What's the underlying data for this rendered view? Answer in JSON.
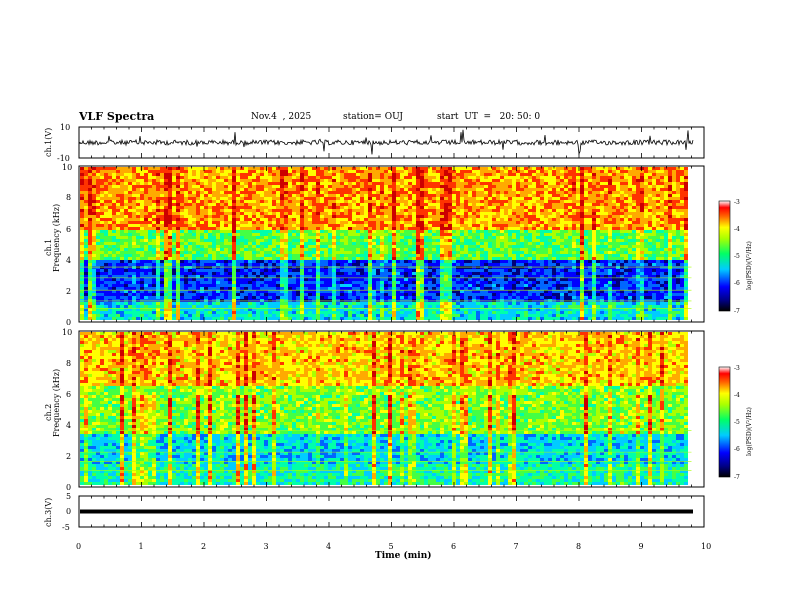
{
  "header": {
    "title": "VLF Spectra",
    "date": "Nov.4  , 2025",
    "station": "station= OUJ",
    "start": "start  UT  =   20: 50: 0"
  },
  "colors": {
    "spectrum": [
      "#00007a",
      "#0000ff",
      "#0066ff",
      "#00ccff",
      "#00ffaa",
      "#44ff44",
      "#aaff00",
      "#ffff00",
      "#ffaa00",
      "#ff3300",
      "#cc0000"
    ]
  },
  "chart_data": [
    {
      "type": "line",
      "panel": "ch1-waveform",
      "ylabel": "ch.1(V)",
      "ylim": [
        -10,
        10
      ],
      "yticks": [
        "10",
        "-10"
      ],
      "xlim": [
        0,
        10
      ]
    },
    {
      "type": "heatmap",
      "panel": "ch1-spectrogram",
      "ylabel_line1": "ch.1",
      "ylabel_line2": "Frequency  (kHz)",
      "ylim": [
        0,
        10
      ],
      "yticks": [
        "0",
        "2",
        "4",
        "6",
        "8",
        "10"
      ],
      "xlim": [
        0,
        10
      ],
      "data_end_min": 9.8,
      "colorbar": {
        "label": "log(PSD)(V²/Hz)",
        "ticks": [
          "-3",
          "-4",
          "-5",
          "-6",
          "-7"
        ],
        "range": [
          -7,
          -3
        ]
      }
    },
    {
      "type": "heatmap",
      "panel": "ch2-spectrogram",
      "ylabel_line1": "ch.2",
      "ylabel_line2": "Frequency  (kHz)",
      "ylim": [
        0,
        10
      ],
      "yticks": [
        "0",
        "2",
        "4",
        "6",
        "8",
        "10"
      ],
      "xlim": [
        0,
        10
      ],
      "data_end_min": 9.8,
      "colorbar": {
        "label": "log(PSD)(V²/Hz)",
        "ticks": [
          "-3",
          "-4",
          "-5",
          "-6",
          "-7"
        ],
        "range": [
          -7,
          -3
        ]
      }
    },
    {
      "type": "line",
      "panel": "ch3-waveform",
      "ylabel": "ch.3(V)",
      "ylim": [
        -5,
        5
      ],
      "yticks": [
        "5",
        "0",
        "-5"
      ],
      "xlim": [
        0,
        10
      ]
    }
  ],
  "xaxis": {
    "label": "Time  (min)",
    "ticks": [
      "0",
      "1",
      "2",
      "3",
      "4",
      "5",
      "6",
      "7",
      "8",
      "9",
      "10"
    ]
  }
}
